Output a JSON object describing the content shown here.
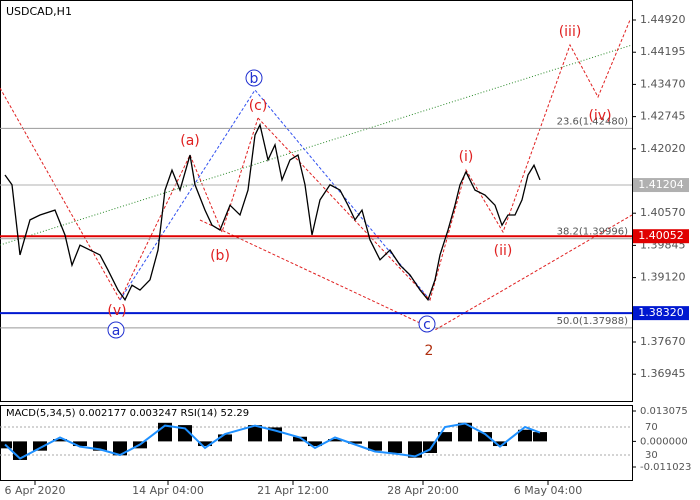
{
  "chart_data": [
    {
      "type": "line",
      "title": "USDCAD,H1",
      "x": [
        5,
        12,
        20,
        30,
        40,
        55,
        65,
        72,
        80,
        90,
        100,
        108,
        118,
        125,
        132,
        140,
        150,
        158,
        165,
        172,
        180,
        190,
        195,
        205,
        212,
        220,
        230,
        240,
        248,
        255,
        260,
        268,
        275,
        282,
        290,
        298,
        305,
        312,
        320,
        330,
        340,
        348,
        355,
        362,
        370,
        380,
        390,
        400,
        410,
        420,
        428,
        435,
        440,
        448,
        455,
        460,
        466,
        475,
        485,
        495,
        502,
        508,
        515,
        522,
        528,
        534,
        540
      ],
      "series": [
        {
          "color": "#000000",
          "values": [
            1.4143,
            1.4121,
            1.3963,
            1.4042,
            1.4053,
            1.4064,
            1.4008,
            1.394,
            1.3985,
            1.3974,
            1.3963,
            1.3929,
            1.3884,
            1.3862,
            1.3895,
            1.3884,
            1.3907,
            1.3974,
            1.4109,
            1.4154,
            1.4109,
            1.4188,
            1.4121,
            1.4064,
            1.403,
            1.4019,
            1.4075,
            1.4053,
            1.4109,
            1.4233,
            1.4256,
            1.4177,
            1.4211,
            1.4132,
            1.4177,
            1.4188,
            1.4121,
            1.4008,
            1.4087,
            1.4121,
            1.4109,
            1.4075,
            1.4042,
            1.4064,
            1.3997,
            1.3952,
            1.3974,
            1.394,
            1.3918,
            1.3884,
            1.3862,
            1.3907,
            1.3963,
            1.4019,
            1.4075,
            1.4121,
            1.415,
            1.4109,
            1.4098,
            1.4075,
            1.403,
            1.4053,
            1.4053,
            1.4087,
            1.4143,
            1.4165,
            1.4132
          ]
        }
      ],
      "xlim": [
        0,
        632
      ],
      "xticks": [
        {
          "value": 35,
          "label": "6 Apr 2020"
        },
        {
          "value": 168,
          "label": "14 Apr 04:00"
        },
        {
          "value": 293,
          "label": "21 Apr 12:00"
        },
        {
          "value": 423,
          "label": "28 Apr 20:00"
        },
        {
          "value": 548,
          "label": "6 May 04:00"
        }
      ],
      "ylim": [
        1.36364,
        1.45258
      ],
      "yticks": [
        {
          "value": 1.4492,
          "label": "1.44920"
        },
        {
          "value": 1.44195,
          "label": "1.44195"
        },
        {
          "value": 1.4347,
          "label": "1.43470"
        },
        {
          "value": 1.42745,
          "label": "1.42745"
        },
        {
          "value": 1.4202,
          "label": "1.42020"
        },
        {
          "value": 1.4057,
          "label": "1.40570"
        },
        {
          "value": 1.39845,
          "label": "1.39845"
        },
        {
          "value": 1.3912,
          "label": "1.39120"
        },
        {
          "value": 1.3767,
          "label": "1.37670"
        },
        {
          "value": 1.36945,
          "label": "1.36945"
        }
      ],
      "levels": [
        {
          "value": 1.41204,
          "label": "1.41204",
          "color": "#b0b0b0"
        },
        {
          "value": 1.40052,
          "label": "1.40052",
          "color": "#e00000"
        },
        {
          "value": 1.3832,
          "label": "1.38320",
          "color": "#0018d0"
        }
      ],
      "fibo": [
        {
          "value": 1.4248,
          "label": "23.6(1.42480)"
        },
        {
          "value": 1.39996,
          "label": "38.2(1.39996)"
        },
        {
          "value": 1.37988,
          "label": "50.0(1.37988)"
        }
      ],
      "waves": [
        "(a)",
        "(b)",
        "(c)",
        "b",
        "(v)",
        "a",
        "c",
        "2",
        "(i)",
        "(ii)",
        "(iii)",
        "(iv)"
      ]
    },
    {
      "type": "macd",
      "title": "MACD(5,34,5) 0.002177 0.003247 RSI(14) 52.29",
      "x": [
        5,
        20,
        40,
        60,
        80,
        100,
        120,
        140,
        165,
        185,
        205,
        225,
        255,
        275,
        300,
        315,
        335,
        355,
        375,
        395,
        415,
        430,
        445,
        465,
        485,
        500,
        525,
        540
      ],
      "series": [
        {
          "color": "#000000",
          "values": [
            -0.003,
            -0.008,
            -0.004,
            0.001,
            -0.002,
            -0.004,
            -0.006,
            -0.003,
            0.008,
            0.007,
            -0.002,
            0.003,
            0.007,
            0.006,
            0.002,
            -0.002,
            0.001,
            -0.001,
            -0.004,
            -0.005,
            -0.007,
            -0.005,
            0.004,
            0.008,
            0.004,
            -0.002,
            0.005,
            0.004
          ]
        },
        {
          "color": "#1e90ff",
          "axis": "y2",
          "values": [
            45,
            25,
            40,
            55,
            42,
            38,
            30,
            45,
            72,
            68,
            40,
            60,
            72,
            65,
            55,
            40,
            55,
            45,
            35,
            32,
            28,
            38,
            70,
            75,
            60,
            42,
            70,
            62
          ]
        }
      ],
      "ylim": [
        -0.011023,
        0.013075
      ],
      "yticks": [
        {
          "value": 0.013075,
          "label": "0.013075"
        },
        {
          "value": 0,
          "label": "0.000000"
        },
        {
          "value": -0.011023,
          "label": "-0.011023"
        }
      ],
      "y2lim": [
        0,
        100
      ],
      "y2ticks": [
        70,
        30
      ]
    }
  ]
}
